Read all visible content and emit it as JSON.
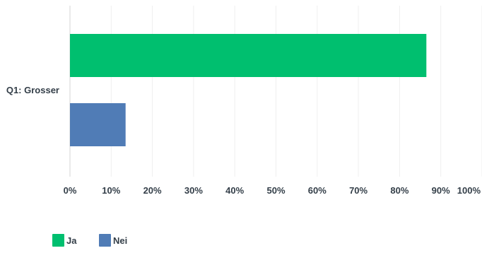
{
  "chart_data": {
    "type": "bar",
    "orientation": "horizontal",
    "categories": [
      "Q1: Grosser"
    ],
    "series": [
      {
        "name": "Ja",
        "values": [
          86.5
        ],
        "color": "#00bf6f"
      },
      {
        "name": "Nei",
        "values": [
          13.5
        ],
        "color": "#507cb6"
      }
    ],
    "x_ticks": [
      "0%",
      "10%",
      "20%",
      "30%",
      "40%",
      "50%",
      "60%",
      "70%",
      "80%",
      "90%",
      "100%"
    ],
    "xlim": [
      0,
      100
    ],
    "grid": true,
    "legend_position": "bottom-left",
    "title": "",
    "xlabel": "",
    "ylabel": ""
  }
}
